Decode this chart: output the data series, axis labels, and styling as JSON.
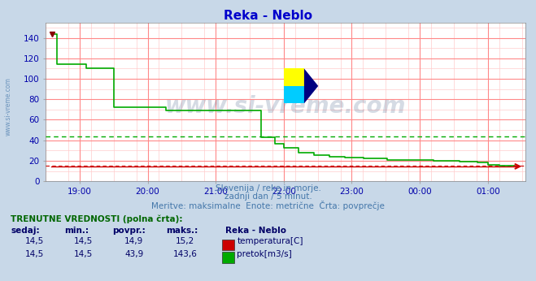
{
  "title": "Reka - Neblo",
  "title_color": "#0000cc",
  "bg_color": "#c8d8e8",
  "plot_bg_color": "#ffffff",
  "grid_color_major": "#ff8888",
  "grid_color_minor": "#ffcccc",
  "tick_color": "#0000aa",
  "yticks": [
    0,
    20,
    40,
    60,
    80,
    100,
    120,
    140
  ],
  "ylim": [
    0,
    155
  ],
  "xlim_start": 18.5,
  "xlim_end": 25.55,
  "hour_ticks": [
    19,
    20,
    21,
    22,
    23,
    24,
    25
  ],
  "xticklabels": [
    "19:00",
    "20:00",
    "21:00",
    "22:00",
    "23:00",
    "00:00",
    "01:00"
  ],
  "subtitle1": "Slovenija / reke in morje.",
  "subtitle2": "zadnji dan / 5 minut.",
  "subtitle3": "Meritve: maksimalne  Enote: metrične  Črta: povprečje",
  "watermark": "www.si-vreme.com",
  "watermark_color": "#1a3a6a",
  "watermark_alpha": 0.18,
  "legend_title": "TRENUTNE VREDNOSTI (polna črta):",
  "legend_cols": [
    "sedaj:",
    "min.:",
    "povpr.:",
    "maks.:",
    "Reka - Neblo"
  ],
  "temp_row": [
    "14,5",
    "14,5",
    "14,9",
    "15,2",
    "temperatura[C]"
  ],
  "flow_row": [
    "14,5",
    "14,5",
    "43,9",
    "143,6",
    "pretok[m3/s]"
  ],
  "temp_color": "#cc0000",
  "flow_color": "#00aa00",
  "avg_flow": 43.9,
  "avg_temp": 14.9,
  "temp_line_color": "#cc0000",
  "flow_line_color": "#00aa00",
  "side_label": "www.si-vreme.com",
  "logo_yellow": "#ffff00",
  "logo_cyan": "#00ccff",
  "logo_blue": "#000080",
  "arrow_color": "#cc0000"
}
